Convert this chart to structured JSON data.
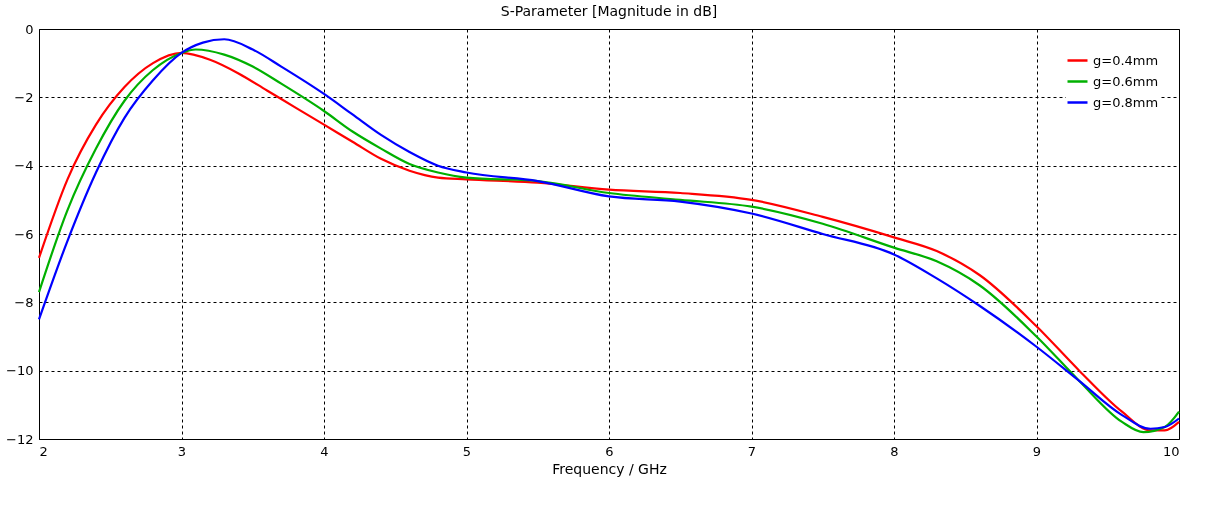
{
  "chart_data": {
    "type": "line",
    "title": "S-Parameter [Magnitude in dB]",
    "xlabel": "Frequency / GHz",
    "xlim": [
      2,
      10
    ],
    "xticks": [
      2,
      3,
      4,
      5,
      6,
      7,
      8,
      9,
      10
    ],
    "ylim": [
      -12,
      0
    ],
    "yticks": [
      -12,
      -10,
      -8,
      -6,
      -4,
      -2,
      0
    ],
    "grid": true,
    "legend": "top right",
    "line_style": "solid",
    "series": [
      {
        "name": "g=0.4mm",
        "color": "#ff0000",
        "x": [
          2,
          2.2,
          2.4,
          2.6,
          2.8,
          3.0,
          3.2,
          3.4,
          3.6,
          3.8,
          4.0,
          4.2,
          4.4,
          4.6,
          4.8,
          5.0,
          5.5,
          6.0,
          6.5,
          7.0,
          7.5,
          8.0,
          8.3,
          8.6,
          9.0,
          9.3,
          9.6,
          9.8,
          9.9,
          10
        ],
        "values": [
          -6.7,
          -4.4,
          -2.8,
          -1.7,
          -1.0,
          -0.7,
          -0.9,
          -1.3,
          -1.8,
          -2.3,
          -2.8,
          -3.3,
          -3.8,
          -4.15,
          -4.35,
          -4.4,
          -4.5,
          -4.7,
          -4.8,
          -5.0,
          -5.5,
          -6.1,
          -6.5,
          -7.2,
          -8.7,
          -10.0,
          -11.2,
          -11.75,
          -11.75,
          -11.5
        ]
      },
      {
        "name": "g=0.6mm",
        "color": "#00b000",
        "x": [
          2,
          2.2,
          2.4,
          2.6,
          2.8,
          3.0,
          3.1,
          3.3,
          3.5,
          3.7,
          4.0,
          4.2,
          4.4,
          4.6,
          4.8,
          5.0,
          5.5,
          6.0,
          6.5,
          7.0,
          7.5,
          8.0,
          8.3,
          8.6,
          9.0,
          9.3,
          9.6,
          9.75,
          9.9,
          10
        ],
        "values": [
          -7.7,
          -5.3,
          -3.5,
          -2.1,
          -1.2,
          -0.7,
          -0.6,
          -0.75,
          -1.1,
          -1.6,
          -2.4,
          -3.0,
          -3.5,
          -3.95,
          -4.2,
          -4.35,
          -4.45,
          -4.8,
          -5.0,
          -5.2,
          -5.7,
          -6.4,
          -6.8,
          -7.5,
          -9.0,
          -10.3,
          -11.5,
          -11.8,
          -11.65,
          -11.2
        ]
      },
      {
        "name": "g=0.8mm",
        "color": "#0000ff",
        "x": [
          2,
          2.2,
          2.4,
          2.6,
          2.8,
          3.0,
          3.15,
          3.3,
          3.5,
          3.7,
          4.0,
          4.2,
          4.4,
          4.6,
          4.8,
          5.0,
          5.5,
          6.0,
          6.5,
          7.0,
          7.5,
          8.0,
          8.3,
          8.6,
          9.0,
          9.3,
          9.6,
          9.8,
          9.9,
          10
        ],
        "values": [
          -8.5,
          -6.2,
          -4.2,
          -2.6,
          -1.5,
          -0.7,
          -0.4,
          -0.3,
          -0.6,
          -1.1,
          -1.9,
          -2.5,
          -3.1,
          -3.6,
          -4.0,
          -4.2,
          -4.45,
          -4.9,
          -5.05,
          -5.4,
          -6.0,
          -6.6,
          -7.3,
          -8.1,
          -9.3,
          -10.3,
          -11.3,
          -11.7,
          -11.65,
          -11.4
        ]
      }
    ]
  }
}
